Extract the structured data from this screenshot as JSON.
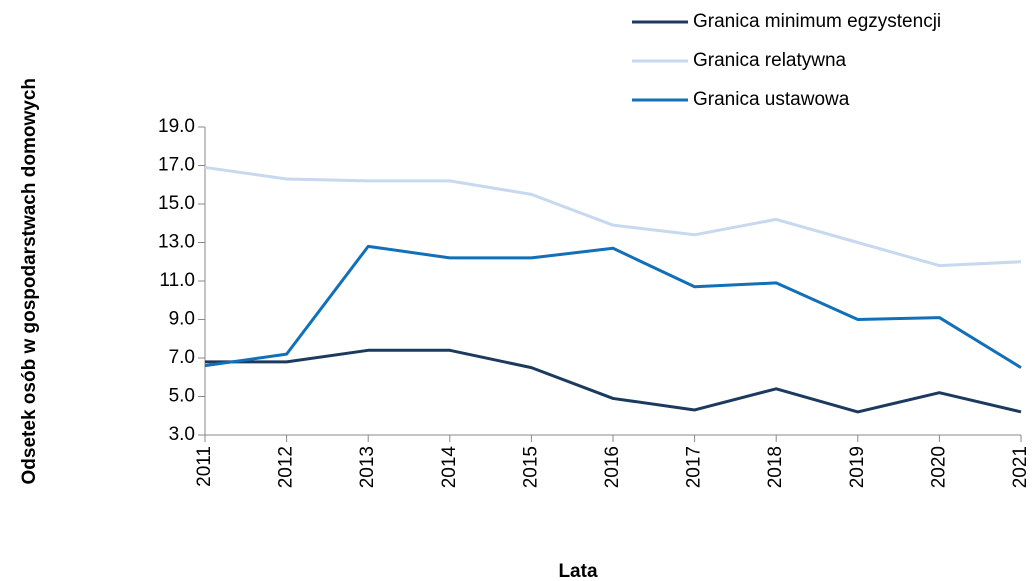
{
  "chart_data": {
    "type": "line",
    "x_label": "Lata",
    "y_label": "Odsetek osób w gospodarstwach domowych",
    "categories": [
      "2011",
      "2012",
      "2013",
      "2014",
      "2015",
      "2016",
      "2017",
      "2018",
      "2019",
      "2020",
      "2021"
    ],
    "series": [
      {
        "name": "Granica minimum egzystencji",
        "color": "#1c3a5e",
        "values": [
          6.8,
          6.8,
          7.4,
          7.4,
          6.5,
          4.9,
          4.3,
          5.4,
          4.2,
          5.2,
          4.2
        ]
      },
      {
        "name": "Granica relatywna",
        "color": "#c6d9ee",
        "values": [
          16.9,
          16.3,
          16.2,
          16.2,
          15.5,
          13.9,
          13.4,
          14.2,
          13.0,
          11.8,
          12.0
        ]
      },
      {
        "name": "Granica ustawowa",
        "color": "#1170b8",
        "values": [
          6.6,
          7.2,
          12.8,
          12.2,
          12.2,
          12.7,
          10.7,
          10.9,
          9.0,
          9.1,
          6.5
        ]
      }
    ],
    "ylim": [
      3,
      19
    ],
    "yticks": [
      {
        "value": 3,
        "label": "3.0"
      },
      {
        "value": 5,
        "label": "5.0"
      },
      {
        "value": 7,
        "label": "7.0"
      },
      {
        "value": 9,
        "label": "9.0"
      },
      {
        "value": 11,
        "label": "11.0"
      },
      {
        "value": 13,
        "label": "13.0"
      },
      {
        "value": 15,
        "label": "15.0"
      },
      {
        "value": 17,
        "label": "17.0"
      },
      {
        "value": 19,
        "label": "19.0"
      }
    ],
    "legend": "top-right"
  }
}
